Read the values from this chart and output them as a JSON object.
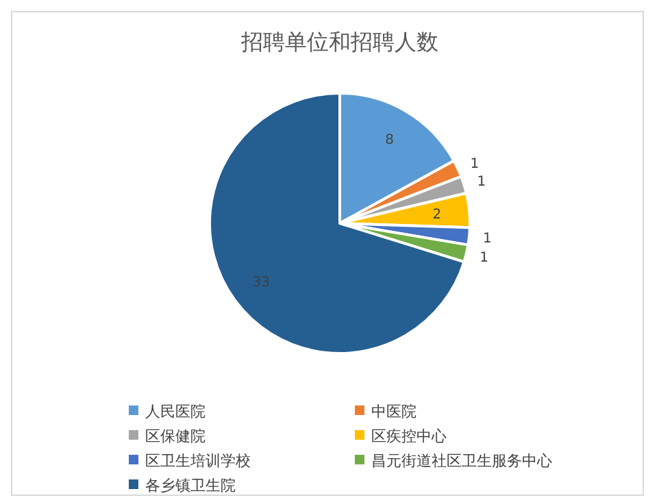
{
  "chart_data": {
    "type": "pie",
    "title": "招聘单位和招聘人数",
    "categories": [
      "人民医院",
      "中医院",
      "区保健院",
      "区疾控中心",
      "区卫生培训学校",
      "昌元街道社区卫生服务中心",
      "各乡镇卫生院"
    ],
    "values": [
      8,
      1,
      1,
      2,
      1,
      1,
      33
    ],
    "colors": [
      "#5b9bd5",
      "#ed7d31",
      "#a5a5a5",
      "#ffc000",
      "#4472c4",
      "#70ad47",
      "#255e91"
    ],
    "data_labels": true,
    "legend": "bottom"
  }
}
